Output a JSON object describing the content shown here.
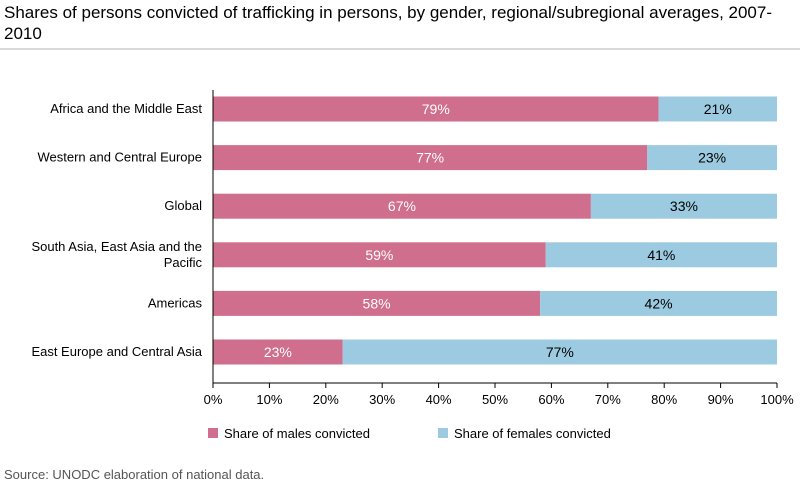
{
  "title": "Shares of persons convicted of trafficking in persons, by gender, regional/subregional averages, 2007-2010",
  "source": "Source: UNODC elaboration of national data.",
  "colors": {
    "male": "#cf6e8d",
    "female": "#9ccbe1"
  },
  "chart_data": {
    "type": "bar",
    "orientation": "horizontal",
    "stacked": true,
    "categories": [
      "Africa and the Middle East",
      "Western and Central Europe",
      "Global",
      "South Asia, East Asia and the Pacific",
      "Americas",
      "East Europe and Central Asia"
    ],
    "category_lines": [
      [
        "Africa and the Middle East"
      ],
      [
        "Western and Central Europe"
      ],
      [
        "Global"
      ],
      [
        "South Asia, East Asia and the",
        "Pacific"
      ],
      [
        "Americas"
      ],
      [
        "East Europe and Central Asia"
      ]
    ],
    "series": [
      {
        "name": "Share of males convicted",
        "values": [
          79,
          77,
          67,
          59,
          58,
          23
        ],
        "labels": [
          "79%",
          "77%",
          "67%",
          "59%",
          "58%",
          "23%"
        ]
      },
      {
        "name": "Share of females convicted",
        "values": [
          21,
          23,
          33,
          41,
          42,
          77
        ],
        "labels": [
          "21%",
          "23%",
          "33%",
          "41%",
          "42%",
          "77%"
        ]
      }
    ],
    "xlim": [
      0,
      100
    ],
    "xticks": [
      "0%",
      "10%",
      "20%",
      "30%",
      "40%",
      "50%",
      "60%",
      "70%",
      "80%",
      "90%",
      "100%"
    ],
    "grid": false,
    "legend_position": "bottom"
  }
}
